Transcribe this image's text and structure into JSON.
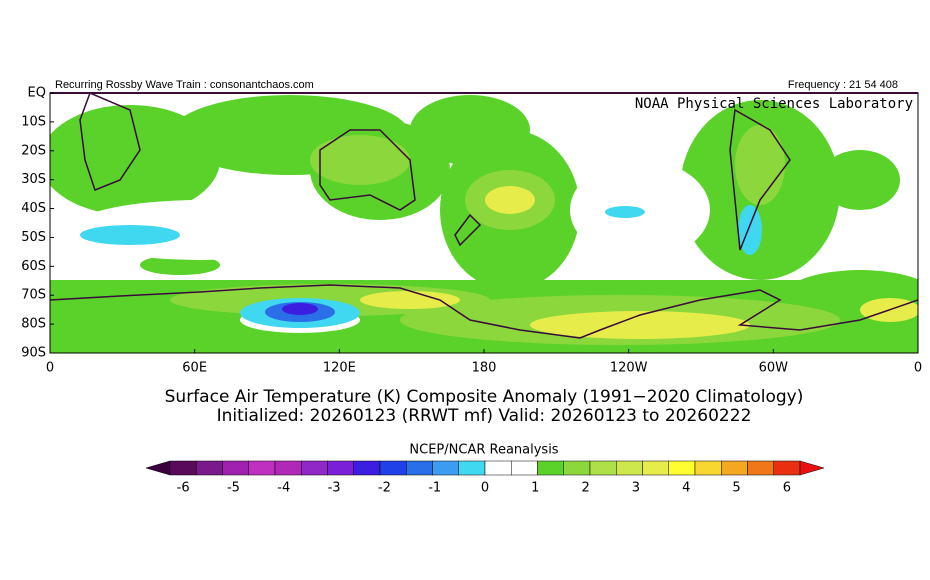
{
  "header": {
    "left": "Recurring Rossby Wave Train : consonantchaos.com",
    "right": "Frequency : 21 54 408"
  },
  "map": {
    "credit": "NOAA Physical Sciences Laboratory",
    "lat_labels": [
      "EQ",
      "10S",
      "20S",
      "30S",
      "40S",
      "50S",
      "60S",
      "70S",
      "80S",
      "90S"
    ],
    "lon_labels": [
      "0",
      "60E",
      "120E",
      "180",
      "120W",
      "60W",
      "0"
    ]
  },
  "title": {
    "line1": "Surface Air Temperature (K) Composite Anomaly (1991−2020 Climatology)",
    "line2": "Initialized: 20260123 (RRWT mf) Valid: 20260123 to 20260222"
  },
  "colorbar": {
    "title": "NCEP/NCAR Reanalysis",
    "ticks": [
      -6,
      -5,
      -4,
      -3,
      -2,
      -1,
      0,
      1,
      2,
      3,
      4,
      5,
      6
    ],
    "colors": [
      "#5a0a5a",
      "#7a1a8a",
      "#a020b0",
      "#c030c0",
      "#b028b8",
      "#9028c8",
      "#7a20d8",
      "#3c1ee0",
      "#2040e8",
      "#2a6ee8",
      "#3c9cf0",
      "#40d8f0",
      "#ffffff",
      "#ffffff",
      "#5ad22a",
      "#8cd83c",
      "#aee048",
      "#cce84c",
      "#e6ec4a",
      "#ffff30",
      "#f8d830",
      "#f4a820",
      "#f07818",
      "#e83010"
    ],
    "low_color": "#3c0040",
    "high_color": "#e81010"
  }
}
